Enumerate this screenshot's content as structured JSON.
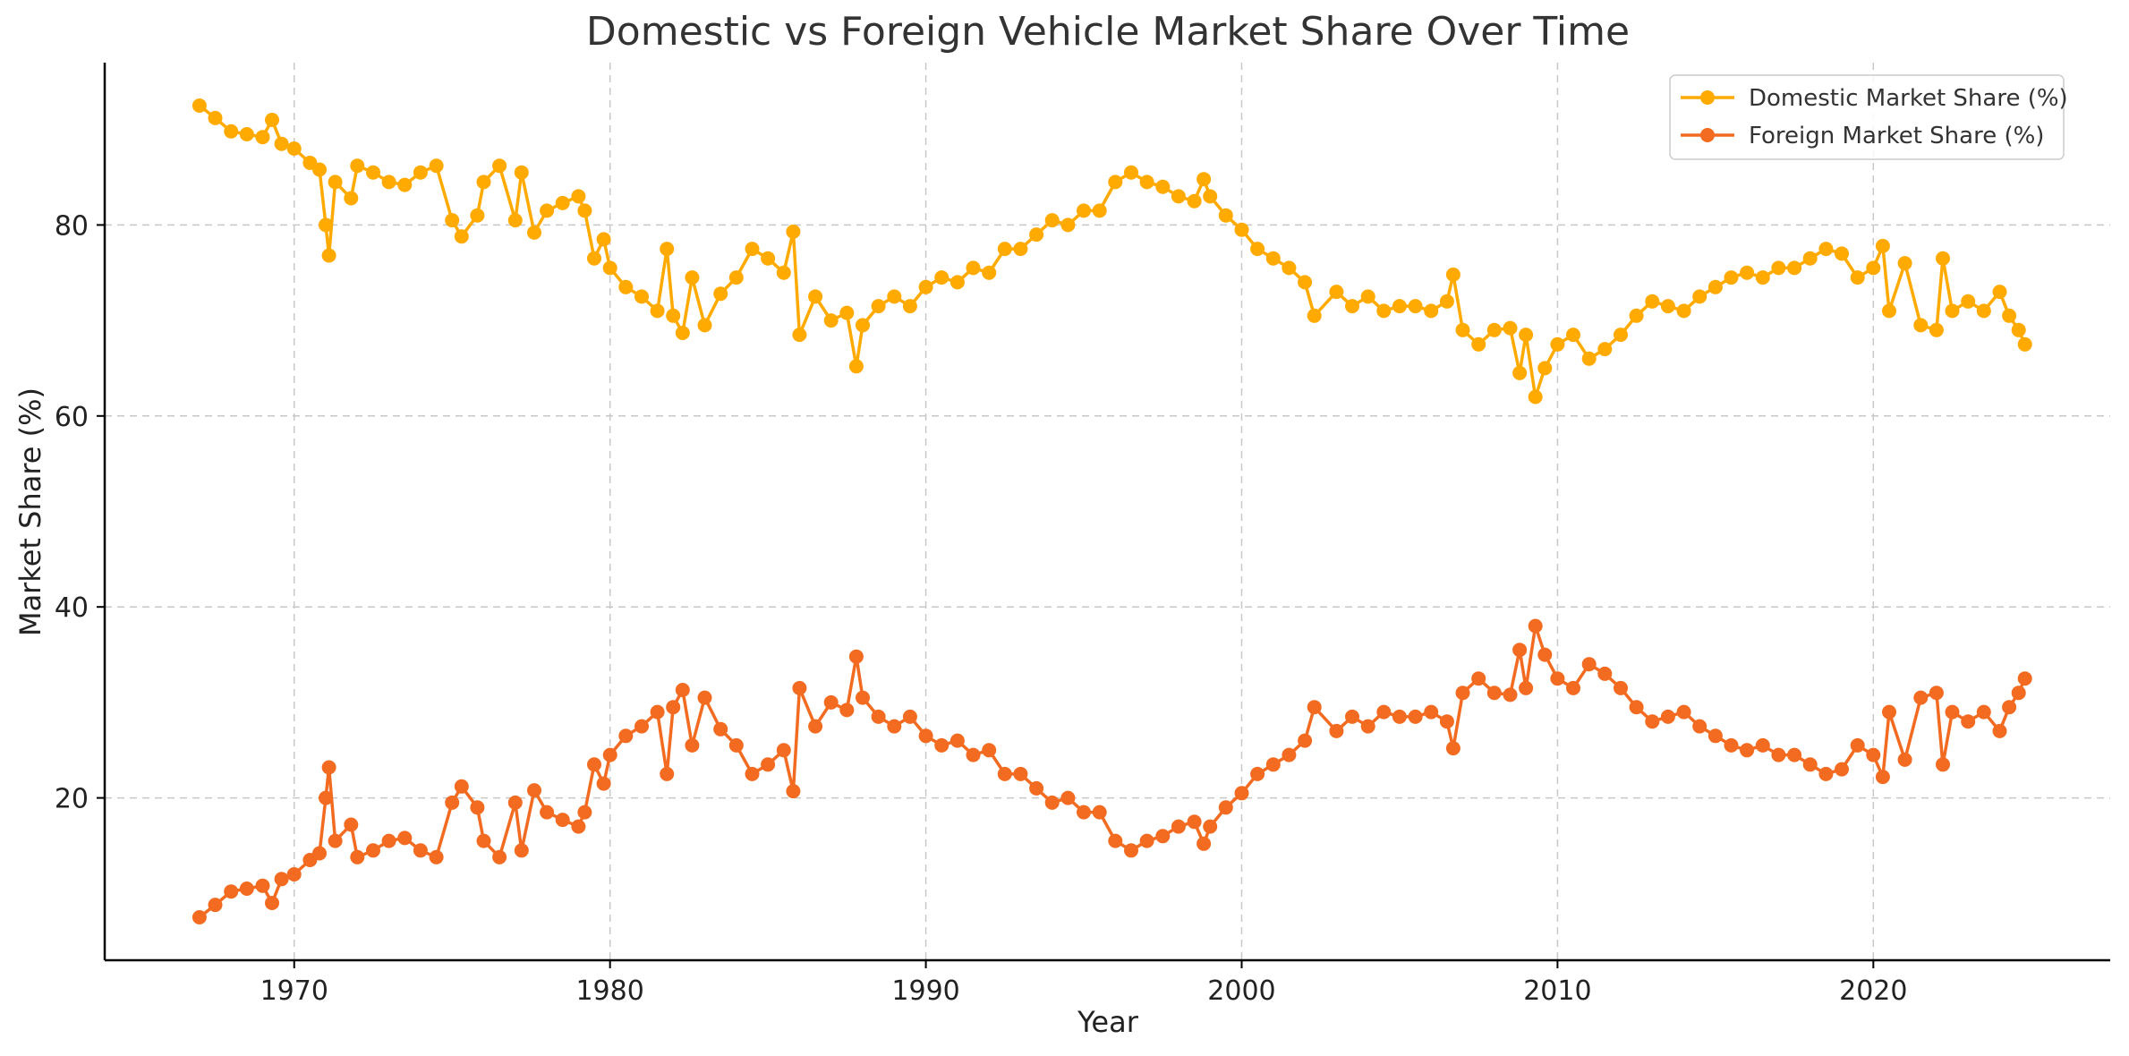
{
  "chart_data": {
    "type": "line",
    "title": "Domestic vs Foreign Vehicle Market Share Over Time",
    "xlabel": "Year",
    "ylabel": "Market Share (%)",
    "xlim": [
      1964.0,
      2027.5
    ],
    "ylim": [
      3.0,
      97.0
    ],
    "x_ticks": [
      1970,
      1980,
      1990,
      2000,
      2010,
      2020
    ],
    "y_ticks": [
      20,
      40,
      60,
      80
    ],
    "grid": true,
    "legend_position": "top-right",
    "series": [
      {
        "name": "Domestic Market Share (%)",
        "color": "#FFAA00",
        "points": [
          [
            1967.0,
            92.5
          ],
          [
            1967.5,
            91.2
          ],
          [
            1968.0,
            89.8
          ],
          [
            1968.5,
            89.5
          ],
          [
            1969.0,
            89.2
          ],
          [
            1969.3,
            91.0
          ],
          [
            1969.6,
            88.5
          ],
          [
            1970.0,
            88.0
          ],
          [
            1970.5,
            86.5
          ],
          [
            1970.8,
            85.8
          ],
          [
            1971.0,
            80.0
          ],
          [
            1971.1,
            76.8
          ],
          [
            1971.3,
            84.5
          ],
          [
            1971.8,
            82.8
          ],
          [
            1972.0,
            86.2
          ],
          [
            1972.5,
            85.5
          ],
          [
            1973.0,
            84.5
          ],
          [
            1973.5,
            84.2
          ],
          [
            1974.0,
            85.5
          ],
          [
            1974.5,
            86.2
          ],
          [
            1975.0,
            80.5
          ],
          [
            1975.3,
            78.8
          ],
          [
            1975.8,
            81.0
          ],
          [
            1976.0,
            84.5
          ],
          [
            1976.5,
            86.2
          ],
          [
            1977.0,
            80.5
          ],
          [
            1977.2,
            85.5
          ],
          [
            1977.6,
            79.2
          ],
          [
            1978.0,
            81.5
          ],
          [
            1978.5,
            82.3
          ],
          [
            1979.0,
            83.0
          ],
          [
            1979.2,
            81.5
          ],
          [
            1979.5,
            76.5
          ],
          [
            1979.8,
            78.5
          ],
          [
            1980.0,
            75.5
          ],
          [
            1980.5,
            73.5
          ],
          [
            1981.0,
            72.5
          ],
          [
            1981.5,
            71.0
          ],
          [
            1981.8,
            77.5
          ],
          [
            1982.0,
            70.5
          ],
          [
            1982.3,
            68.7
          ],
          [
            1982.6,
            74.5
          ],
          [
            1983.0,
            69.5
          ],
          [
            1983.5,
            72.8
          ],
          [
            1984.0,
            74.5
          ],
          [
            1984.5,
            77.5
          ],
          [
            1985.0,
            76.5
          ],
          [
            1985.5,
            75.0
          ],
          [
            1985.8,
            79.3
          ],
          [
            1986.0,
            68.5
          ],
          [
            1986.5,
            72.5
          ],
          [
            1987.0,
            70.0
          ],
          [
            1987.5,
            70.8
          ],
          [
            1987.8,
            65.2
          ],
          [
            1988.0,
            69.5
          ],
          [
            1988.5,
            71.5
          ],
          [
            1989.0,
            72.5
          ],
          [
            1989.5,
            71.5
          ],
          [
            1990.0,
            73.5
          ],
          [
            1990.5,
            74.5
          ],
          [
            1991.0,
            74.0
          ],
          [
            1991.5,
            75.5
          ],
          [
            1992.0,
            75.0
          ],
          [
            1992.5,
            77.5
          ],
          [
            1993.0,
            77.5
          ],
          [
            1993.5,
            79.0
          ],
          [
            1994.0,
            80.5
          ],
          [
            1994.5,
            80.0
          ],
          [
            1995.0,
            81.5
          ],
          [
            1995.5,
            81.5
          ],
          [
            1996.0,
            84.5
          ],
          [
            1996.5,
            85.5
          ],
          [
            1997.0,
            84.5
          ],
          [
            1997.5,
            84.0
          ],
          [
            1998.0,
            83.0
          ],
          [
            1998.5,
            82.5
          ],
          [
            1998.8,
            84.8
          ],
          [
            1999.0,
            83.0
          ],
          [
            1999.5,
            81.0
          ],
          [
            2000.0,
            79.5
          ],
          [
            2000.5,
            77.5
          ],
          [
            2001.0,
            76.5
          ],
          [
            2001.5,
            75.5
          ],
          [
            2002.0,
            74.0
          ],
          [
            2002.3,
            70.5
          ],
          [
            2003.0,
            73.0
          ],
          [
            2003.5,
            71.5
          ],
          [
            2004.0,
            72.5
          ],
          [
            2004.5,
            71.0
          ],
          [
            2005.0,
            71.5
          ],
          [
            2005.5,
            71.5
          ],
          [
            2006.0,
            71.0
          ],
          [
            2006.5,
            72.0
          ],
          [
            2006.7,
            74.8
          ],
          [
            2007.0,
            69.0
          ],
          [
            2007.5,
            67.5
          ],
          [
            2008.0,
            69.0
          ],
          [
            2008.5,
            69.2
          ],
          [
            2008.8,
            64.5
          ],
          [
            2009.0,
            68.5
          ],
          [
            2009.3,
            62.0
          ],
          [
            2009.6,
            65.0
          ],
          [
            2010.0,
            67.5
          ],
          [
            2010.5,
            68.5
          ],
          [
            2011.0,
            66.0
          ],
          [
            2011.5,
            67.0
          ],
          [
            2012.0,
            68.5
          ],
          [
            2012.5,
            70.5
          ],
          [
            2013.0,
            72.0
          ],
          [
            2013.5,
            71.5
          ],
          [
            2014.0,
            71.0
          ],
          [
            2014.5,
            72.5
          ],
          [
            2015.0,
            73.5
          ],
          [
            2015.5,
            74.5
          ],
          [
            2016.0,
            75.0
          ],
          [
            2016.5,
            74.5
          ],
          [
            2017.0,
            75.5
          ],
          [
            2017.5,
            75.5
          ],
          [
            2018.0,
            76.5
          ],
          [
            2018.5,
            77.5
          ],
          [
            2019.0,
            77.0
          ],
          [
            2019.5,
            74.5
          ],
          [
            2020.0,
            75.5
          ],
          [
            2020.3,
            77.8
          ],
          [
            2020.5,
            71.0
          ],
          [
            2021.0,
            76.0
          ],
          [
            2021.5,
            69.5
          ],
          [
            2022.0,
            69.0
          ],
          [
            2022.2,
            76.5
          ],
          [
            2022.5,
            71.0
          ],
          [
            2023.0,
            72.0
          ],
          [
            2023.5,
            71.0
          ],
          [
            2024.0,
            73.0
          ],
          [
            2024.3,
            70.5
          ],
          [
            2024.6,
            69.0
          ],
          [
            2024.8,
            67.5
          ]
        ]
      },
      {
        "name": "Foreign Market Share (%)",
        "color": "#F26B21",
        "points": [
          [
            1967.0,
            7.5
          ],
          [
            1967.5,
            8.8
          ],
          [
            1968.0,
            10.2
          ],
          [
            1968.5,
            10.5
          ],
          [
            1969.0,
            10.8
          ],
          [
            1969.3,
            9.0
          ],
          [
            1969.6,
            11.5
          ],
          [
            1970.0,
            12.0
          ],
          [
            1970.5,
            13.5
          ],
          [
            1970.8,
            14.2
          ],
          [
            1971.0,
            20.0
          ],
          [
            1971.1,
            23.2
          ],
          [
            1971.3,
            15.5
          ],
          [
            1971.8,
            17.2
          ],
          [
            1972.0,
            13.8
          ],
          [
            1972.5,
            14.5
          ],
          [
            1973.0,
            15.5
          ],
          [
            1973.5,
            15.8
          ],
          [
            1974.0,
            14.5
          ],
          [
            1974.5,
            13.8
          ],
          [
            1975.0,
            19.5
          ],
          [
            1975.3,
            21.2
          ],
          [
            1975.8,
            19.0
          ],
          [
            1976.0,
            15.5
          ],
          [
            1976.5,
            13.8
          ],
          [
            1977.0,
            19.5
          ],
          [
            1977.2,
            14.5
          ],
          [
            1977.6,
            20.8
          ],
          [
            1978.0,
            18.5
          ],
          [
            1978.5,
            17.7
          ],
          [
            1979.0,
            17.0
          ],
          [
            1979.2,
            18.5
          ],
          [
            1979.5,
            23.5
          ],
          [
            1979.8,
            21.5
          ],
          [
            1980.0,
            24.5
          ],
          [
            1980.5,
            26.5
          ],
          [
            1981.0,
            27.5
          ],
          [
            1981.5,
            29.0
          ],
          [
            1981.8,
            22.5
          ],
          [
            1982.0,
            29.5
          ],
          [
            1982.3,
            31.3
          ],
          [
            1982.6,
            25.5
          ],
          [
            1983.0,
            30.5
          ],
          [
            1983.5,
            27.2
          ],
          [
            1984.0,
            25.5
          ],
          [
            1984.5,
            22.5
          ],
          [
            1985.0,
            23.5
          ],
          [
            1985.5,
            25.0
          ],
          [
            1985.8,
            20.7
          ],
          [
            1986.0,
            31.5
          ],
          [
            1986.5,
            27.5
          ],
          [
            1987.0,
            30.0
          ],
          [
            1987.5,
            29.2
          ],
          [
            1987.8,
            34.8
          ],
          [
            1988.0,
            30.5
          ],
          [
            1988.5,
            28.5
          ],
          [
            1989.0,
            27.5
          ],
          [
            1989.5,
            28.5
          ],
          [
            1990.0,
            26.5
          ],
          [
            1990.5,
            25.5
          ],
          [
            1991.0,
            26.0
          ],
          [
            1991.5,
            24.5
          ],
          [
            1992.0,
            25.0
          ],
          [
            1992.5,
            22.5
          ],
          [
            1993.0,
            22.5
          ],
          [
            1993.5,
            21.0
          ],
          [
            1994.0,
            19.5
          ],
          [
            1994.5,
            20.0
          ],
          [
            1995.0,
            18.5
          ],
          [
            1995.5,
            18.5
          ],
          [
            1996.0,
            15.5
          ],
          [
            1996.5,
            14.5
          ],
          [
            1997.0,
            15.5
          ],
          [
            1997.5,
            16.0
          ],
          [
            1998.0,
            17.0
          ],
          [
            1998.5,
            17.5
          ],
          [
            1998.8,
            15.2
          ],
          [
            1999.0,
            17.0
          ],
          [
            1999.5,
            19.0
          ],
          [
            2000.0,
            20.5
          ],
          [
            2000.5,
            22.5
          ],
          [
            2001.0,
            23.5
          ],
          [
            2001.5,
            24.5
          ],
          [
            2002.0,
            26.0
          ],
          [
            2002.3,
            29.5
          ],
          [
            2003.0,
            27.0
          ],
          [
            2003.5,
            28.5
          ],
          [
            2004.0,
            27.5
          ],
          [
            2004.5,
            29.0
          ],
          [
            2005.0,
            28.5
          ],
          [
            2005.5,
            28.5
          ],
          [
            2006.0,
            29.0
          ],
          [
            2006.5,
            28.0
          ],
          [
            2006.7,
            25.2
          ],
          [
            2007.0,
            31.0
          ],
          [
            2007.5,
            32.5
          ],
          [
            2008.0,
            31.0
          ],
          [
            2008.5,
            30.8
          ],
          [
            2008.8,
            35.5
          ],
          [
            2009.0,
            31.5
          ],
          [
            2009.3,
            38.0
          ],
          [
            2009.6,
            35.0
          ],
          [
            2010.0,
            32.5
          ],
          [
            2010.5,
            31.5
          ],
          [
            2011.0,
            34.0
          ],
          [
            2011.5,
            33.0
          ],
          [
            2012.0,
            31.5
          ],
          [
            2012.5,
            29.5
          ],
          [
            2013.0,
            28.0
          ],
          [
            2013.5,
            28.5
          ],
          [
            2014.0,
            29.0
          ],
          [
            2014.5,
            27.5
          ],
          [
            2015.0,
            26.5
          ],
          [
            2015.5,
            25.5
          ],
          [
            2016.0,
            25.0
          ],
          [
            2016.5,
            25.5
          ],
          [
            2017.0,
            24.5
          ],
          [
            2017.5,
            24.5
          ],
          [
            2018.0,
            23.5
          ],
          [
            2018.5,
            22.5
          ],
          [
            2019.0,
            23.0
          ],
          [
            2019.5,
            25.5
          ],
          [
            2020.0,
            24.5
          ],
          [
            2020.3,
            22.2
          ],
          [
            2020.5,
            29.0
          ],
          [
            2021.0,
            24.0
          ],
          [
            2021.5,
            30.5
          ],
          [
            2022.0,
            31.0
          ],
          [
            2022.2,
            23.5
          ],
          [
            2022.5,
            29.0
          ],
          [
            2023.0,
            28.0
          ],
          [
            2023.5,
            29.0
          ],
          [
            2024.0,
            27.0
          ],
          [
            2024.3,
            29.5
          ],
          [
            2024.6,
            31.0
          ],
          [
            2024.8,
            32.5
          ]
        ]
      }
    ]
  }
}
